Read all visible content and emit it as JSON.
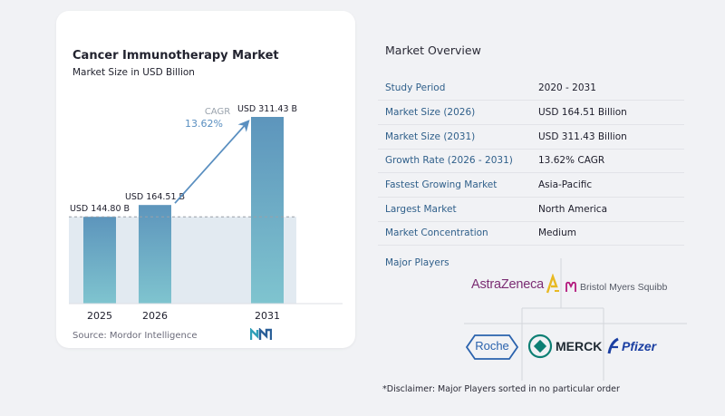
{
  "chart_data": {
    "type": "bar",
    "title": "Cancer Immunotherapy Market",
    "subtitle": "Market Size in USD Billion",
    "categories": [
      "2025",
      "2026",
      "2031"
    ],
    "values": [
      144.8,
      164.51,
      311.43
    ],
    "value_labels": [
      "USD 144.80 B",
      "USD 164.51 B",
      "USD 311.43 B"
    ],
    "cagr_label": "CAGR",
    "cagr_value": "13.62%",
    "xlabel": "",
    "ylabel": "",
    "grid": false,
    "ylim": [
      0,
      311.43
    ]
  },
  "source": "Source: Mordor Intelligence",
  "overview": {
    "title": "Market Overview",
    "rows": [
      {
        "key": "Study Period",
        "value": "2020 - 2031"
      },
      {
        "key": "Market Size (2026)",
        "value": "USD 164.51 Billion"
      },
      {
        "key": "Market Size (2031)",
        "value": "USD 311.43 Billion"
      },
      {
        "key": "Growth Rate (2026 - 2031)",
        "value": "13.62% CAGR"
      },
      {
        "key": "Fastest Growing Market",
        "value": "Asia-Pacific"
      },
      {
        "key": "Largest Market",
        "value": "North America"
      },
      {
        "key": "Market Concentration",
        "value": "Medium"
      }
    ]
  },
  "players": {
    "title": "Major Players",
    "logos": [
      "AstraZeneca",
      "Bristol Myers Squibb",
      "Roche",
      "MERCK",
      "Pfizer"
    ]
  },
  "disclaimer": "*Disclaimer: Major Players sorted in no particular order",
  "colors": {
    "bar_top": "#5d95bc",
    "bar_bottom": "#7fc4cf",
    "band": "#e2eaf1",
    "arrow": "#5a8fc0",
    "key_text": "#2f5f8a",
    "astrazeneca": "#7b2d73",
    "astrazeneca_accent": "#e8b923",
    "bms": "#b3187c",
    "roche": "#2a62ad",
    "merck": "#0d7f74",
    "pfizer": "#1b3fa2"
  }
}
